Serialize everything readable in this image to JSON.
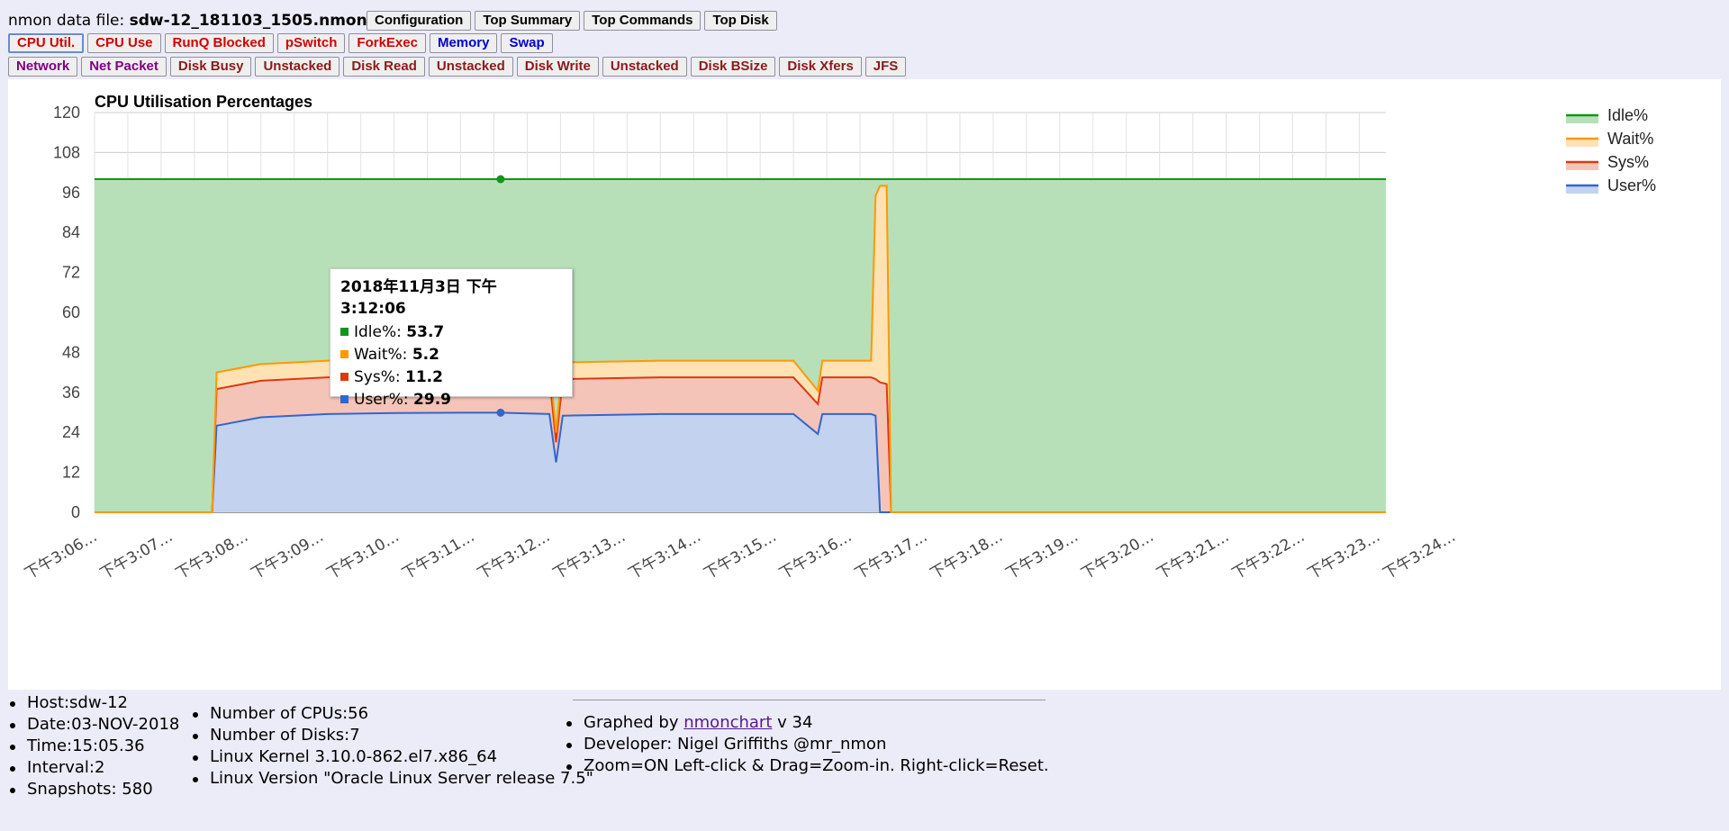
{
  "header": {
    "label": "nmon data file: ",
    "filename": "sdw-12_181103_1505.nmon"
  },
  "buttons_row1": [
    {
      "label": "Configuration",
      "color": "dark"
    },
    {
      "label": "Top Summary",
      "color": "dark"
    },
    {
      "label": "Top Commands",
      "color": "dark"
    },
    {
      "label": "Top Disk",
      "color": "dark"
    }
  ],
  "buttons_row2": [
    {
      "label": "CPU Util.",
      "color": "red",
      "active": true
    },
    {
      "label": "CPU Use",
      "color": "red"
    },
    {
      "label": "RunQ Blocked",
      "color": "red"
    },
    {
      "label": "pSwitch",
      "color": "red"
    },
    {
      "label": "ForkExec",
      "color": "red"
    },
    {
      "label": "Memory",
      "color": "blue"
    },
    {
      "label": "Swap",
      "color": "blue"
    }
  ],
  "buttons_row3": [
    {
      "label": "Network",
      "color": "purple"
    },
    {
      "label": "Net Packet",
      "color": "purple"
    },
    {
      "label": "Disk Busy",
      "color": "brown"
    },
    {
      "label": "Unstacked",
      "color": "brown"
    },
    {
      "label": "Disk Read",
      "color": "brown"
    },
    {
      "label": "Unstacked",
      "color": "brown"
    },
    {
      "label": "Disk Write",
      "color": "brown"
    },
    {
      "label": "Unstacked",
      "color": "brown"
    },
    {
      "label": "Disk BSize",
      "color": "brown"
    },
    {
      "label": "Disk Xfers",
      "color": "brown"
    },
    {
      "label": "JFS",
      "color": "brown"
    }
  ],
  "chart_data": {
    "type": "area",
    "stacked": true,
    "title": "CPU Utilisation Percentages",
    "ylim": [
      0,
      120
    ],
    "yticks": [
      0,
      12,
      24,
      36,
      48,
      60,
      72,
      84,
      96,
      108,
      120
    ],
    "x_tick_labels": [
      "下午3:06…",
      "下午3:07…",
      "下午3:08…",
      "下午3:09…",
      "下午3:10…",
      "下午3:11…",
      "下午3:12…",
      "下午3:13…",
      "下午3:14…",
      "下午3:15…",
      "下午3:16…",
      "下午3:17…",
      "下午3:18…",
      "下午3:19…",
      "下午3:20…",
      "下午3:21…",
      "下午3:22…",
      "下午3:23…",
      "下午3:24…"
    ],
    "x_start": "15:06:00",
    "x_end": "15:25:24",
    "grid": true,
    "legend_position": "right",
    "series": [
      {
        "name": "Idle%",
        "color": "#109618"
      },
      {
        "name": "Wait%",
        "color": "#ff9900"
      },
      {
        "name": "Sys%",
        "color": "#dc3912"
      },
      {
        "name": "User%",
        "color": "#3366cc"
      }
    ],
    "points": [
      {
        "t": "15:06:00",
        "user": 0,
        "sys": 0,
        "wait": 0
      },
      {
        "t": "15:07:46",
        "user": 0,
        "sys": 0,
        "wait": 0
      },
      {
        "t": "15:07:50",
        "user": 26,
        "sys": 11,
        "wait": 5
      },
      {
        "t": "15:08:30",
        "user": 28.5,
        "sys": 11,
        "wait": 5
      },
      {
        "t": "15:09:30",
        "user": 29.5,
        "sys": 11,
        "wait": 5
      },
      {
        "t": "15:10:30",
        "user": 29.8,
        "sys": 11,
        "wait": 5
      },
      {
        "t": "15:11:30",
        "user": 29.9,
        "sys": 11,
        "wait": 5
      },
      {
        "t": "15:12:06",
        "user": 29.9,
        "sys": 11.2,
        "wait": 5.2
      },
      {
        "t": "15:12:50",
        "user": 29.5,
        "sys": 11,
        "wait": 5
      },
      {
        "t": "15:12:56",
        "user": 15,
        "sys": 6,
        "wait": 3
      },
      {
        "t": "15:13:02",
        "user": 29,
        "sys": 11,
        "wait": 5
      },
      {
        "t": "15:14:30",
        "user": 29.5,
        "sys": 11,
        "wait": 5
      },
      {
        "t": "15:16:30",
        "user": 29.5,
        "sys": 11,
        "wait": 5
      },
      {
        "t": "15:16:52",
        "user": 23.5,
        "sys": 9,
        "wait": 4
      },
      {
        "t": "15:16:56",
        "user": 29.5,
        "sys": 11,
        "wait": 5
      },
      {
        "t": "15:17:40",
        "user": 29.5,
        "sys": 11,
        "wait": 5
      },
      {
        "t": "15:17:44",
        "user": 29,
        "sys": 11,
        "wait": 55
      },
      {
        "t": "15:17:48",
        "user": 0,
        "sys": 39,
        "wait": 59
      },
      {
        "t": "15:17:54",
        "user": 0,
        "sys": 38.5,
        "wait": 59.5
      },
      {
        "t": "15:17:58",
        "user": 0,
        "sys": 0,
        "wait": 0
      },
      {
        "t": "15:25:24",
        "user": 0,
        "sys": 0,
        "wait": 0
      }
    ]
  },
  "tooltip": {
    "title": "2018年11月3日 下午3:12:06",
    "rows": [
      {
        "label": "Idle%: ",
        "value": "53.7",
        "color": "#109618"
      },
      {
        "label": "Wait%: ",
        "value": "5.2",
        "color": "#ff9900"
      },
      {
        "label": "Sys%: ",
        "value": "11.2",
        "color": "#dc3912"
      },
      {
        "label": "User%: ",
        "value": "29.9",
        "color": "#3366cc"
      }
    ]
  },
  "info1": [
    "Host:sdw-12",
    "Date:03-NOV-2018",
    "Time:15:05.36",
    "Interval:2",
    "Snapshots: 580"
  ],
  "info2": [
    "Number of CPUs:56",
    "Number of Disks:7",
    "Linux Kernel 3.10.0-862.el7.x86_64",
    "Linux Version \"Oracle Linux Server release 7.5\""
  ],
  "info3": {
    "graphed_prefix": "Graphed by ",
    "graphed_link": "nmonchart",
    "graphed_suffix": " v 34",
    "developer": "Developer: Nigel Griffiths @mr_nmon",
    "zoom": "Zoom=ON Left-click & Drag=Zoom-in. Right-click=Reset."
  }
}
